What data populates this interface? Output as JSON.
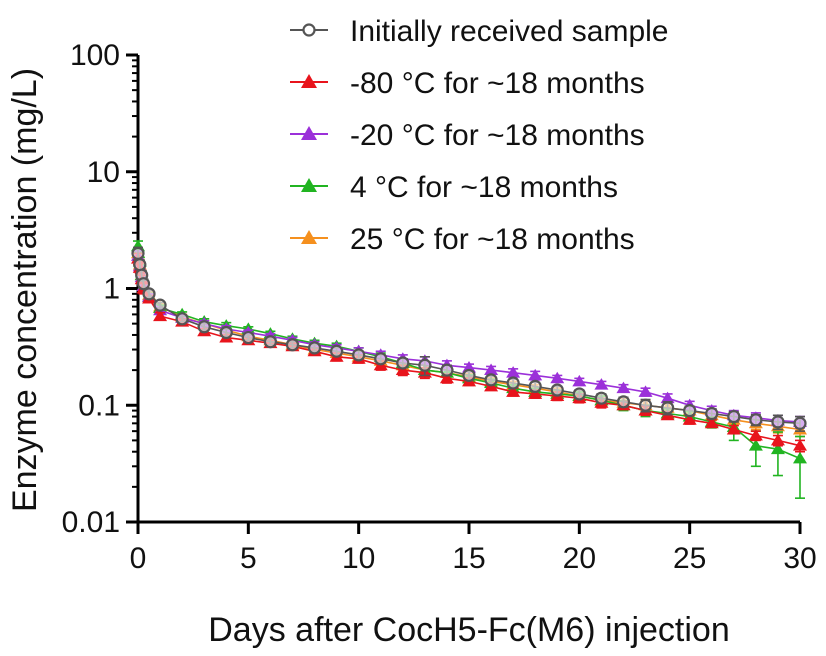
{
  "chart_data": {
    "type": "scatter",
    "title": "",
    "xlabel": "Days after CocH5-Fc(M6) injection",
    "ylabel": "Enzyme concentration (mg/L)",
    "xlim": [
      0,
      30
    ],
    "ylim": [
      0.01,
      100
    ],
    "yscale": "log",
    "x_ticks": [
      0,
      5,
      10,
      15,
      20,
      25,
      30
    ],
    "x_tick_labels": [
      "0",
      "5",
      "10",
      "15",
      "20",
      "25",
      "30"
    ],
    "y_ticks": [
      0.01,
      0.1,
      1,
      10,
      100
    ],
    "y_tick_labels": [
      "0.01",
      "0.1",
      "1",
      "10",
      "100"
    ],
    "legend_position": "top-right",
    "x": [
      0.0,
      0.083,
      0.167,
      0.25,
      0.5,
      1,
      2,
      3,
      4,
      5,
      6,
      7,
      8,
      9,
      10,
      11,
      12,
      13,
      14,
      15,
      16,
      17,
      18,
      19,
      20,
      21,
      22,
      23,
      24,
      25,
      26,
      27,
      28,
      29,
      30
    ],
    "series": [
      {
        "name": "Initially received sample",
        "color": "#555555",
        "marker": "circle-open",
        "values": [
          2.0,
          1.6,
          1.3,
          1.1,
          0.9,
          0.72,
          0.55,
          0.47,
          0.42,
          0.38,
          0.35,
          0.33,
          0.31,
          0.29,
          0.27,
          0.25,
          0.23,
          0.22,
          0.2,
          0.18,
          0.165,
          0.155,
          0.145,
          0.135,
          0.125,
          0.115,
          0.107,
          0.1,
          0.095,
          0.09,
          0.085,
          0.08,
          0.075,
          0.072,
          0.07
        ],
        "errors": [
          0.25,
          0.15,
          0.12,
          0.1,
          0.06,
          0.04,
          0.03,
          0.03,
          0.03,
          0.02,
          0.02,
          0.02,
          0.02,
          0.02,
          0.02,
          0.02,
          0.02,
          0.04,
          0.02,
          0.015,
          0.012,
          0.012,
          0.012,
          0.01,
          0.01,
          0.01,
          0.01,
          0.012,
          0.012,
          0.008,
          0.008,
          0.008,
          0.008,
          0.01,
          0.01
        ]
      },
      {
        "name": "-80 °C for ~18 months",
        "color": "#e8141c",
        "marker": "triangle",
        "values": [
          1.8,
          1.5,
          1.2,
          1.0,
          0.82,
          0.58,
          0.52,
          0.43,
          0.38,
          0.36,
          0.34,
          0.32,
          0.29,
          0.26,
          0.25,
          0.22,
          0.2,
          0.19,
          0.17,
          0.16,
          0.145,
          0.13,
          0.125,
          0.12,
          0.115,
          0.105,
          0.1,
          0.09,
          0.082,
          0.075,
          0.07,
          0.062,
          0.055,
          0.05,
          0.045
        ],
        "errors": [
          0.2,
          0.15,
          0.1,
          0.1,
          0.05,
          0.04,
          0.03,
          0.02,
          0.02,
          0.02,
          0.02,
          0.02,
          0.02,
          0.02,
          0.02,
          0.02,
          0.02,
          0.02,
          0.015,
          0.012,
          0.01,
          0.01,
          0.01,
          0.01,
          0.01,
          0.01,
          0.008,
          0.008,
          0.006,
          0.006,
          0.005,
          0.005,
          0.005,
          0.005,
          0.005
        ]
      },
      {
        "name": "-20 °C for ~18 months",
        "color": "#9b30d9",
        "marker": "triangle",
        "values": [
          1.9,
          1.55,
          1.25,
          1.05,
          0.85,
          0.65,
          0.56,
          0.5,
          0.45,
          0.42,
          0.39,
          0.36,
          0.33,
          0.31,
          0.29,
          0.27,
          0.25,
          0.24,
          0.22,
          0.21,
          0.2,
          0.19,
          0.18,
          0.17,
          0.16,
          0.15,
          0.14,
          0.13,
          0.115,
          0.1,
          0.09,
          0.082,
          0.078,
          0.074,
          0.072
        ],
        "errors": [
          0.2,
          0.15,
          0.1,
          0.1,
          0.05,
          0.04,
          0.03,
          0.03,
          0.03,
          0.02,
          0.02,
          0.02,
          0.02,
          0.02,
          0.02,
          0.02,
          0.02,
          0.02,
          0.02,
          0.015,
          0.015,
          0.015,
          0.015,
          0.01,
          0.01,
          0.01,
          0.01,
          0.01,
          0.01,
          0.008,
          0.008,
          0.008,
          0.008,
          0.008,
          0.008
        ]
      },
      {
        "name": "4 °C for ~18 months",
        "color": "#21b421",
        "marker": "triangle",
        "values": [
          2.3,
          1.7,
          1.3,
          1.05,
          0.85,
          0.68,
          0.6,
          0.52,
          0.48,
          0.45,
          0.41,
          0.37,
          0.34,
          0.32,
          0.29,
          0.26,
          0.23,
          0.2,
          0.19,
          0.17,
          0.155,
          0.14,
          0.13,
          0.125,
          0.12,
          0.11,
          0.1,
          0.09,
          0.085,
          0.08,
          0.072,
          0.065,
          0.045,
          0.042,
          0.035
        ],
        "errors": [
          0.25,
          0.15,
          0.12,
          0.1,
          0.06,
          0.04,
          0.03,
          0.03,
          0.03,
          0.02,
          0.02,
          0.02,
          0.02,
          0.02,
          0.02,
          0.02,
          0.02,
          0.02,
          0.015,
          0.012,
          0.012,
          0.01,
          0.01,
          0.01,
          0.01,
          0.01,
          0.01,
          0.01,
          0.008,
          0.008,
          0.008,
          0.015,
          0.015,
          0.017,
          0.019
        ]
      },
      {
        "name": "25 °C for ~18 months",
        "color": "#f5901e",
        "marker": "triangle",
        "values": [
          2.0,
          1.6,
          1.3,
          1.05,
          0.88,
          0.7,
          0.57,
          0.5,
          0.44,
          0.39,
          0.36,
          0.33,
          0.3,
          0.28,
          0.26,
          0.24,
          0.22,
          0.2,
          0.19,
          0.175,
          0.16,
          0.15,
          0.14,
          0.13,
          0.12,
          0.11,
          0.105,
          0.1,
          0.095,
          0.09,
          0.082,
          0.075,
          0.07,
          0.066,
          0.062
        ],
        "errors": [
          0.2,
          0.15,
          0.1,
          0.1,
          0.05,
          0.04,
          0.03,
          0.03,
          0.03,
          0.02,
          0.02,
          0.02,
          0.02,
          0.02,
          0.02,
          0.02,
          0.02,
          0.02,
          0.015,
          0.012,
          0.012,
          0.01,
          0.01,
          0.01,
          0.01,
          0.01,
          0.01,
          0.01,
          0.008,
          0.008,
          0.008,
          0.008,
          0.008,
          0.008,
          0.008
        ]
      }
    ]
  }
}
